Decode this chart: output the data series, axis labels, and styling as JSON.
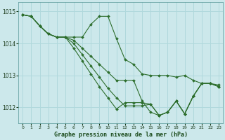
{
  "title": "Graphe pression niveau de la mer (hPa)",
  "bg_color": "#cce8eb",
  "grid_color": "#b0d8dc",
  "line_color": "#2d6e2d",
  "marker_color": "#2d6e2d",
  "ylim": [
    1011.5,
    1015.3
  ],
  "yticks": [
    1012,
    1013,
    1014,
    1015
  ],
  "xlim": [
    -0.5,
    23.5
  ],
  "xticks": [
    0,
    1,
    2,
    3,
    4,
    5,
    6,
    7,
    8,
    9,
    10,
    11,
    12,
    13,
    14,
    15,
    16,
    17,
    18,
    19,
    20,
    21,
    22,
    23
  ],
  "series": [
    {
      "x": [
        0,
        1,
        2,
        3,
        4,
        5,
        6,
        7,
        8,
        9,
        10,
        11,
        12,
        13,
        14,
        15,
        16,
        17,
        18,
        19,
        20,
        21,
        22,
        23
      ],
      "y": [
        1014.9,
        1014.85,
        1014.55,
        1014.3,
        1014.2,
        1014.2,
        1014.2,
        1014.2,
        1014.6,
        1014.85,
        1014.85,
        1014.15,
        1013.5,
        1013.35,
        1013.05,
        1013.0,
        1013.0,
        1013.0,
        1012.95,
        1013.0,
        1012.85,
        1012.75,
        1012.75,
        1012.7
      ]
    },
    {
      "x": [
        0,
        1,
        2,
        3,
        4,
        5,
        6,
        7,
        8,
        9,
        10,
        11,
        12,
        13,
        14,
        15,
        16,
        17,
        18,
        19,
        20,
        21,
        22,
        23
      ],
      "y": [
        1014.9,
        1014.85,
        1014.55,
        1014.3,
        1014.2,
        1014.2,
        1014.1,
        1013.85,
        1013.6,
        1013.35,
        1013.1,
        1012.85,
        1012.85,
        1012.85,
        1012.2,
        1011.85,
        1011.75,
        1011.85,
        1012.2,
        1011.8,
        1012.35,
        1012.75,
        1012.75,
        1012.65
      ]
    },
    {
      "x": [
        0,
        1,
        2,
        3,
        4,
        5,
        6,
        7,
        8,
        9,
        10,
        11,
        12,
        13,
        14,
        15,
        16,
        17,
        18,
        19,
        20,
        21,
        22,
        23
      ],
      "y": [
        1014.9,
        1014.85,
        1014.55,
        1014.3,
        1014.2,
        1014.2,
        1014.0,
        1013.65,
        1013.3,
        1012.95,
        1012.6,
        1012.3,
        1012.05,
        1012.05,
        1012.05,
        1012.1,
        1011.75,
        1011.85,
        1012.2,
        1011.8,
        1012.35,
        1012.75,
        1012.75,
        1012.65
      ]
    },
    {
      "x": [
        0,
        1,
        2,
        3,
        4,
        5,
        6,
        7,
        8,
        9,
        10,
        11,
        12,
        13,
        14,
        15,
        16,
        17,
        18,
        19,
        20,
        21,
        22,
        23
      ],
      "y": [
        1014.9,
        1014.85,
        1014.55,
        1014.3,
        1014.2,
        1014.2,
        1013.85,
        1013.45,
        1013.05,
        1012.65,
        1012.3,
        1011.95,
        1012.15,
        1012.15,
        1012.15,
        1012.1,
        1011.75,
        1011.85,
        1012.2,
        1011.8,
        1012.35,
        1012.75,
        1012.75,
        1012.65
      ]
    }
  ]
}
